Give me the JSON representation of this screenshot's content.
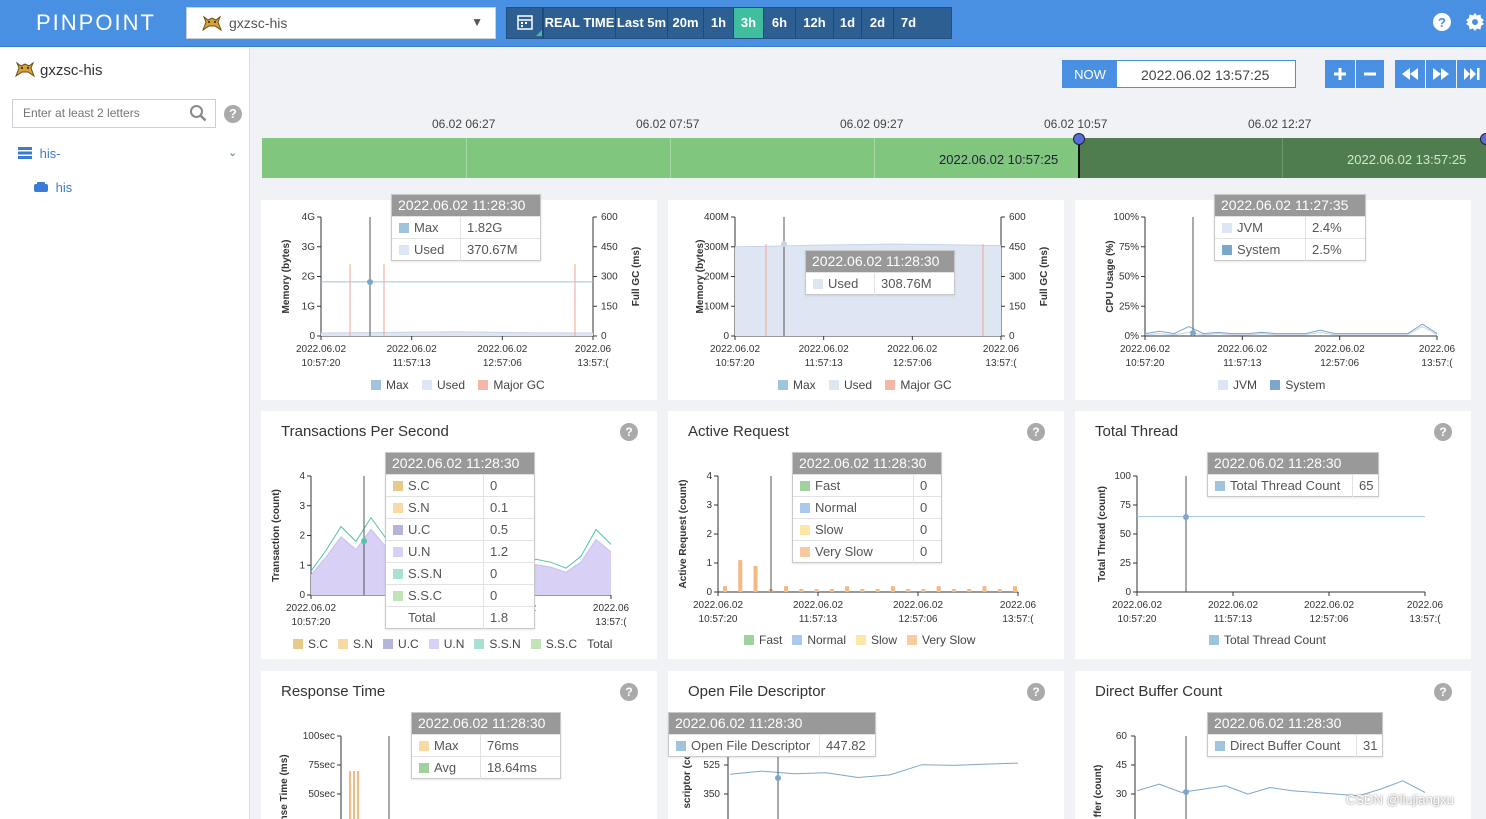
{
  "header": {
    "logo": "PINPOINT",
    "app": "gxzsc-his",
    "ranges": [
      {
        "label": "REAL TIME",
        "active": false
      },
      {
        "label": "Last 5m",
        "active": false
      },
      {
        "label": "20m",
        "active": false
      },
      {
        "label": "1h",
        "active": false
      },
      {
        "label": "3h",
        "active": true
      },
      {
        "label": "6h",
        "active": false
      },
      {
        "label": "12h",
        "active": false
      },
      {
        "label": "1d",
        "active": false
      },
      {
        "label": "2d",
        "active": false
      },
      {
        "label": "7d",
        "active": false
      }
    ],
    "accent": "#4a90e2",
    "active_color": "#3fbfa0"
  },
  "sidebar": {
    "app_name": "gxzsc-his",
    "search_placeholder": "Enter at least 2 letters",
    "group": "his-",
    "agent": "his"
  },
  "timewindow": {
    "now_label": "NOW",
    "value": "2022.06.02 13:57:25"
  },
  "timeline": {
    "ticks": [
      "06.02 06:27",
      "06.02 07:57",
      "06.02 09:27",
      "06.02 10:57",
      "06.02 12:27"
    ],
    "selection_start": "2022.06.02 10:57:25",
    "selection_end": "2022.06.02 13:57:25"
  },
  "x_ticks": [
    [
      "2022.06.02",
      "10:57:20"
    ],
    [
      "2022.06.02",
      "11:57:13"
    ],
    [
      "2022.06.02",
      "12:57:06"
    ],
    [
      "2022.06",
      "13:57:("
    ]
  ],
  "panels": {
    "heap": {
      "y_left_label": "Memory (bytes)",
      "y_right_label": "Full GC (ms)",
      "tooltip_time": "2022.06.02 11:28:30",
      "tooltip": [
        {
          "k": "Max",
          "v": "1.82G"
        },
        {
          "k": "Used",
          "v": "370.67M"
        }
      ],
      "legend": [
        "Max",
        "Used",
        "Major GC"
      ]
    },
    "nonheap": {
      "y_left_label": "Memory (bytes)",
      "y_right_label": "Full GC (ms)",
      "tooltip_time": "2022.06.02 11:28:30",
      "tooltip": [
        {
          "k": "Used",
          "v": "308.76M"
        }
      ],
      "legend": [
        "Max",
        "Used",
        "Major GC"
      ]
    },
    "cpu": {
      "y_label": "CPU Usage (%)",
      "tooltip_time": "2022.06.02 11:27:35",
      "tooltip": [
        {
          "k": "JVM",
          "v": "2.4%"
        },
        {
          "k": "System",
          "v": "2.5%"
        }
      ],
      "legend": [
        "JVM",
        "System"
      ]
    },
    "tps": {
      "title": "Transactions Per Second",
      "y_label": "Transaction (count)",
      "tooltip_time": "2022.06.02 11:28:30",
      "tooltip": [
        {
          "k": "S.C",
          "v": "0"
        },
        {
          "k": "S.N",
          "v": "0.1"
        },
        {
          "k": "U.C",
          "v": "0.5"
        },
        {
          "k": "U.N",
          "v": "1.2"
        },
        {
          "k": "S.S.N",
          "v": "0"
        },
        {
          "k": "S.S.C",
          "v": "0"
        },
        {
          "k": "Total",
          "v": "1.8"
        }
      ],
      "legend": [
        "S.C",
        "S.N",
        "U.C",
        "U.N",
        "S.S.N",
        "S.S.C",
        "Total"
      ]
    },
    "active": {
      "title": "Active Request",
      "y_label": "Active Request (count)",
      "tooltip_time": "2022.06.02 11:28:30",
      "tooltip": [
        {
          "k": "Fast",
          "v": "0"
        },
        {
          "k": "Normal",
          "v": "0"
        },
        {
          "k": "Slow",
          "v": "0"
        },
        {
          "k": "Very Slow",
          "v": "0"
        }
      ],
      "legend": [
        "Fast",
        "Normal",
        "Slow",
        "Very Slow"
      ]
    },
    "thread": {
      "title": "Total Thread",
      "y_label": "Total Thread (count)",
      "tooltip_time": "2022.06.02 11:28:30",
      "tooltip": [
        {
          "k": "Total Thread Count",
          "v": "65"
        }
      ],
      "legend": [
        "Total Thread Count"
      ]
    },
    "response": {
      "title": "Response Time",
      "y_label": "onse Time (ms)",
      "tooltip_time": "2022.06.02 11:28:30",
      "tooltip": [
        {
          "k": "Max",
          "v": "76ms"
        },
        {
          "k": "Avg",
          "v": "18.64ms"
        }
      ]
    },
    "fd": {
      "title": "Open File Descriptor",
      "y_label": "scriptor (co",
      "tooltip_time": "2022.06.02 11:28:30",
      "tooltip": [
        {
          "k": "Open File Descriptor",
          "v": "447.82"
        }
      ]
    },
    "dbuf": {
      "title": "Direct Buffer Count",
      "y_label": "ffer (count)",
      "tooltip_time": "2022.06.02 11:28:30",
      "tooltip": [
        {
          "k": "Direct Buffer Count",
          "v": "31"
        }
      ]
    }
  },
  "watermark": "CSDN @liujiangxu",
  "chart_data": [
    {
      "type": "area",
      "ylabel": "Memory (bytes)",
      "y2label": "Full GC (ms)",
      "y_ticks": [
        "0",
        "1G",
        "2G",
        "3G",
        "4G"
      ],
      "y2_ticks": [
        "0",
        "150",
        "300",
        "450",
        "600"
      ],
      "series": [
        {
          "name": "Max",
          "values": [
            1.82,
            1.82,
            1.82,
            1.82,
            1.82
          ]
        },
        {
          "name": "Used",
          "values": [
            0.1,
            0.12,
            0.14,
            0.11,
            0.1
          ]
        }
      ]
    },
    {
      "type": "area",
      "ylabel": "Memory (bytes)",
      "y2label": "Full GC (ms)",
      "y_ticks": [
        "0",
        "100M",
        "200M",
        "300M",
        "400M"
      ],
      "y2_ticks": [
        "0",
        "150",
        "300",
        "450",
        "600"
      ],
      "series": [
        {
          "name": "Used",
          "values": [
            300,
            302,
            305,
            307,
            309,
            308,
            306,
            304
          ]
        }
      ]
    },
    {
      "type": "line",
      "ylabel": "CPU Usage (%)",
      "y_ticks": [
        "0%",
        "25%",
        "50%",
        "75%",
        "100%"
      ],
      "series": [
        {
          "name": "JVM",
          "values": [
            1,
            2,
            1,
            3,
            1,
            2,
            1,
            1,
            2,
            1,
            1,
            1,
            3,
            1,
            1,
            1,
            1,
            1,
            1,
            8,
            1
          ]
        },
        {
          "name": "System",
          "values": [
            2,
            4,
            2,
            8,
            2,
            3,
            2,
            2,
            3,
            2,
            2,
            2,
            5,
            2,
            2,
            2,
            2,
            2,
            2,
            10,
            2
          ]
        }
      ]
    },
    {
      "type": "area",
      "ylabel": "Transaction (count)",
      "y_ticks": [
        "0",
        "1",
        "2",
        "3",
        "4"
      ],
      "series": [
        {
          "name": "Total",
          "values": [
            0.8,
            1.5,
            2.3,
            1.8,
            2.6,
            1.9,
            2.4,
            1.6,
            1.3,
            1.1,
            0.9,
            1.0,
            1.1,
            0.9,
            1.0,
            1.2,
            1.1,
            0.9,
            1.3,
            2.2,
            1.7
          ]
        }
      ]
    },
    {
      "type": "bar",
      "ylabel": "Active Request (count)",
      "y_ticks": [
        "0",
        "1",
        "2",
        "3",
        "4"
      ],
      "series": [
        {
          "name": "Very Slow",
          "values": [
            0.2,
            1.1,
            0.9,
            0.1,
            0.2,
            0.1,
            0.1,
            0.1,
            0.2,
            0.1,
            0.1,
            0.2,
            0.1,
            0.1,
            0.2,
            0.1,
            0.1,
            0.2,
            0.1,
            0.2
          ]
        }
      ]
    },
    {
      "type": "line",
      "ylabel": "Total Thread (count)",
      "y_ticks": [
        "0",
        "25",
        "50",
        "75",
        "100"
      ],
      "series": [
        {
          "name": "Total Thread Count",
          "values": [
            65,
            65,
            65,
            65,
            65,
            65,
            65,
            65
          ]
        }
      ]
    },
    {
      "type": "line",
      "ylabel": "onse Time (ms)",
      "y_ticks": [
        "50sec",
        "75sec",
        "100sec"
      ],
      "series": []
    },
    {
      "type": "line",
      "ylabel": "scriptor (co",
      "y_ticks": [
        "350",
        "525"
      ],
      "series": [
        {
          "name": "Open File Descriptor",
          "values": [
            440,
            450,
            442,
            445,
            430,
            438,
            470,
            468,
            472,
            475
          ]
        }
      ]
    },
    {
      "type": "line",
      "ylabel": "ffer (count)",
      "y_ticks": [
        "30",
        "45",
        "60"
      ],
      "series": [
        {
          "name": "Direct Buffer Count",
          "values": [
            32,
            36,
            31,
            33,
            35,
            30,
            34,
            32,
            31,
            30,
            29,
            33,
            38,
            31
          ]
        }
      ]
    }
  ]
}
